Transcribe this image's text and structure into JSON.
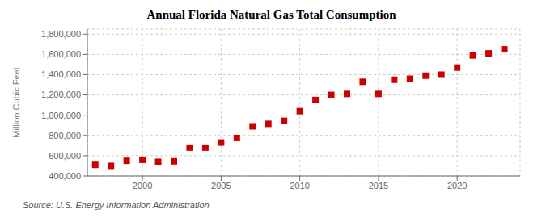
{
  "chart_data": {
    "type": "scatter",
    "title": "Annual Florida Natural Gas Total Consumption",
    "ylabel": "Million Cubic Feet",
    "annotation": "Source: U.S. Energy Information Administration",
    "x": [
      1997,
      1998,
      1999,
      2000,
      2001,
      2002,
      2003,
      2004,
      2005,
      2006,
      2007,
      2008,
      2009,
      2010,
      2011,
      2012,
      2013,
      2014,
      2015,
      2016,
      2017,
      2018,
      2019,
      2020,
      2021,
      2022,
      2023
    ],
    "values": [
      510000,
      500000,
      550000,
      560000,
      540000,
      545000,
      680000,
      680000,
      730000,
      775000,
      890000,
      915000,
      945000,
      1040000,
      1150000,
      1200000,
      1210000,
      1330000,
      1210000,
      1350000,
      1360000,
      1390000,
      1400000,
      1470000,
      1590000,
      1610000,
      1650000
    ],
    "color": "#cc0000",
    "marker": "square",
    "xlim": [
      1996.5,
      2024
    ],
    "xticks": [
      2000,
      2005,
      2010,
      2015,
      2020
    ],
    "ylim": [
      400000,
      1850000
    ],
    "yticks": [
      {
        "value": 400000,
        "label": "400,000"
      },
      {
        "value": 600000,
        "label": "600,000"
      },
      {
        "value": 800000,
        "label": "800,000"
      },
      {
        "value": 1000000,
        "label": "1,000,000"
      },
      {
        "value": 1200000,
        "label": "1,200,000"
      },
      {
        "value": 1400000,
        "label": "1,400,000"
      },
      {
        "value": 1600000,
        "label": "1,600,000"
      },
      {
        "value": 1800000,
        "label": "1,800,000"
      }
    ],
    "grid": true
  }
}
